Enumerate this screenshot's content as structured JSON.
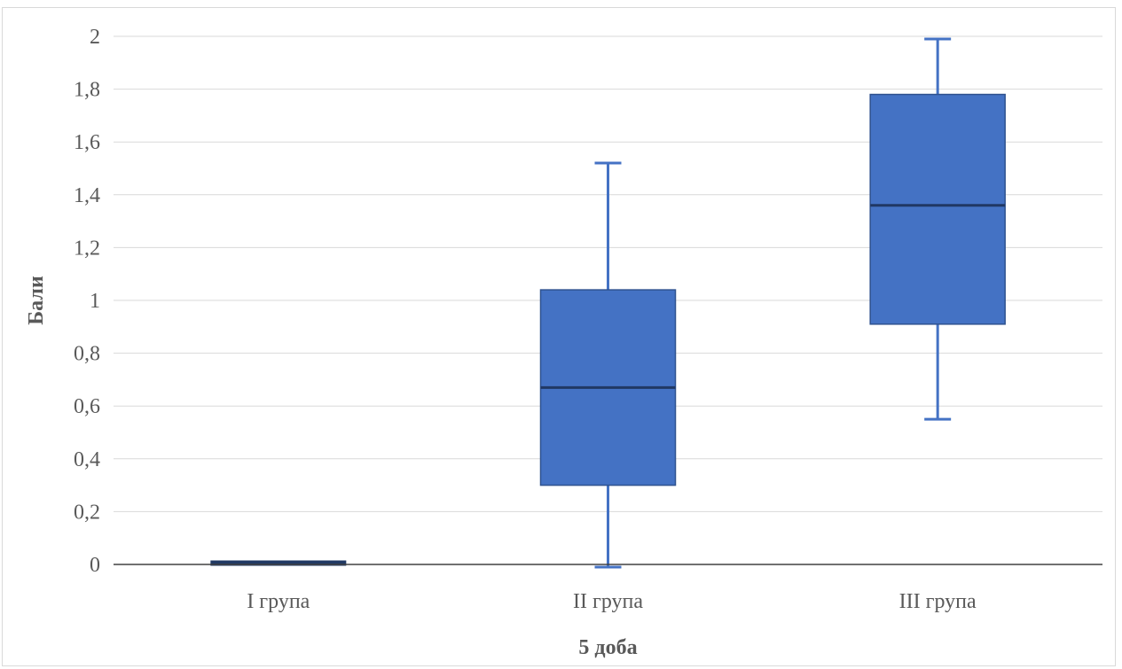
{
  "chart_data": {
    "type": "boxplot",
    "title": "",
    "xlabel": "5 доба",
    "ylabel": "Бали",
    "ylim": [
      0,
      2
    ],
    "yticks": [
      0,
      0.2,
      0.4,
      0.6,
      0.8,
      1,
      1.2,
      1.4,
      1.6,
      1.8,
      2
    ],
    "ytick_labels": [
      "0",
      "0,2",
      "0,4",
      "0,6",
      "0,8",
      "1",
      "1,2",
      "1,4",
      "1,6",
      "1,8",
      "2"
    ],
    "grid": true,
    "legend": "none",
    "categories": [
      "I група",
      "II група",
      "III група"
    ],
    "boxes": [
      {
        "category": "I група",
        "min": 0,
        "q1": 0,
        "median": 0,
        "q3": 0.01,
        "max": 0.01
      },
      {
        "category": "II група",
        "min": -0.01,
        "q1": 0.3,
        "median": 0.67,
        "q3": 1.04,
        "max": 1.52
      },
      {
        "category": "III група",
        "min": 0.55,
        "q1": 0.91,
        "median": 1.36,
        "q3": 1.78,
        "max": 1.99
      }
    ],
    "colors": {
      "box_fill": "#4472c4",
      "box_edge": "#2f528f",
      "median": "#203864",
      "whisker": "#4472c4",
      "grid": "#d9d9d9",
      "axis": "#404040"
    }
  }
}
